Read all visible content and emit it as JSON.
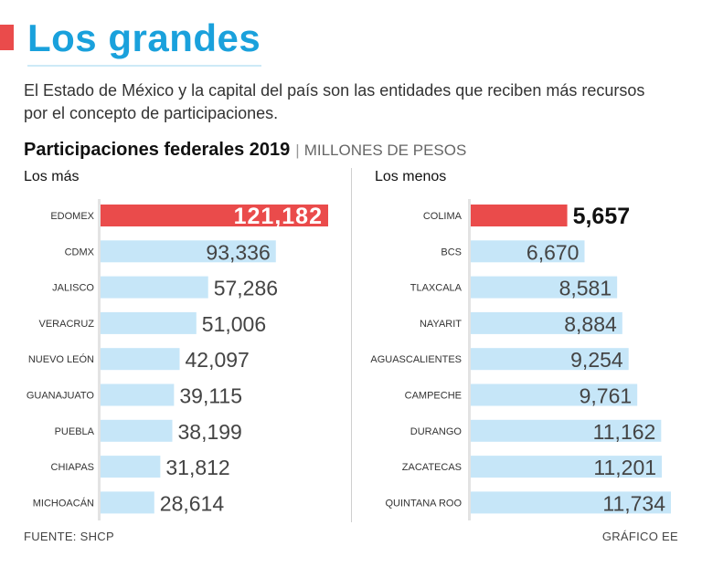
{
  "header": {
    "title": "Los grandes",
    "subtitle": "El Estado de México y la capital del país son las entidades que reciben más recursos por el concepto de participaciones."
  },
  "chart_heading": {
    "title": "Participaciones federales 2019",
    "separator": "|",
    "units": "MILLONES DE PESOS"
  },
  "colors": {
    "title": "#1aa1dc",
    "accent": "#ea4b4b",
    "bar": "#c6e6f8",
    "highlight": "#ea4b4b"
  },
  "chart_data": [
    {
      "type": "bar",
      "orientation": "horizontal",
      "title": "Los más",
      "units": "Millones de pesos",
      "categories": [
        "EDOMEX",
        "CDMX",
        "JALISCO",
        "VERACRUZ",
        "NUEVO LEÓN",
        "GUANAJUATO",
        "PUEBLA",
        "CHIAPAS",
        "MICHOACÁN"
      ],
      "values": [
        121182,
        93336,
        57286,
        51006,
        42097,
        39115,
        38199,
        31812,
        28614
      ],
      "value_labels": [
        "121,182",
        "93,336",
        "57,286",
        "51,006",
        "42,097",
        "39,115",
        "38,199",
        "31,812",
        "28,614"
      ],
      "highlight_index": 0,
      "xlim": [
        0,
        121182
      ]
    },
    {
      "type": "bar",
      "orientation": "horizontal",
      "title": "Los menos",
      "units": "Millones de pesos",
      "categories": [
        "COLIMA",
        "BCS",
        "TLAXCALA",
        "NAYARIT",
        "AGUASCALIENTES",
        "CAMPECHE",
        "DURANGO",
        "ZACATECAS",
        "QUINTANA ROO"
      ],
      "values": [
        5657,
        6670,
        8581,
        8884,
        9254,
        9761,
        11162,
        11201,
        11734
      ],
      "value_labels": [
        "5,657",
        "6,670",
        "8,581",
        "8,884",
        "9,254",
        "9,761",
        "11,162",
        "11,201",
        "11,734"
      ],
      "highlight_index": 0,
      "xlim": [
        0,
        11734
      ]
    }
  ],
  "footer": {
    "source": "FUENTE: SHCP",
    "credit": "GRÁFICO EE"
  }
}
